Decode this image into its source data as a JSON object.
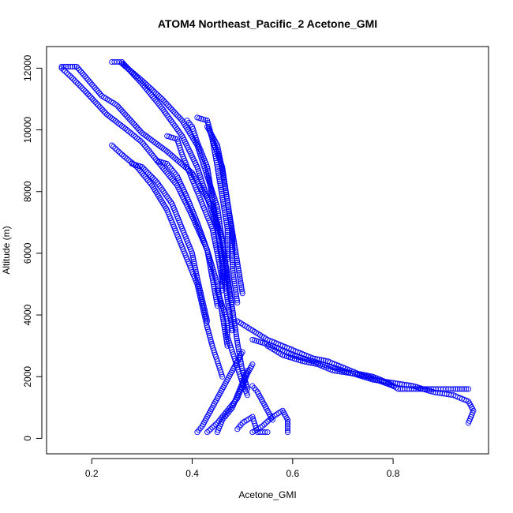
{
  "chart_data": {
    "type": "scatter",
    "title": "ATOM4 Northeast_Pacific_2 Acetone_GMI",
    "xlabel": "Acetone_GMI",
    "ylabel": "Altitude (m)",
    "xlim": [
      0.11,
      0.99
    ],
    "ylim": [
      -500,
      12700
    ],
    "xticks": [
      0.2,
      0.4,
      0.6,
      0.8
    ],
    "xtick_labels": [
      "0.2",
      "0.4",
      "0.6",
      "0.8"
    ],
    "yticks": [
      0,
      2000,
      4000,
      6000,
      8000,
      10000,
      12000
    ],
    "ytick_labels": [
      "0",
      "2000",
      "4000",
      "6000",
      "8000",
      "10000",
      "12000"
    ],
    "grid": false,
    "legend": "none",
    "marker": "open-circle",
    "color": "#0000ff",
    "series": [
      {
        "x": [
          0.14,
          0.17,
          0.22,
          0.25,
          0.3,
          0.35,
          0.4,
          0.44,
          0.46,
          0.47,
          0.48,
          0.49,
          0.5,
          0.51
        ],
        "y": [
          12050,
          12050,
          11100,
          10800,
          9900,
          9300,
          8600,
          7500,
          6400,
          5200,
          4200,
          3100,
          2200,
          1600
        ]
      },
      {
        "x": [
          0.14,
          0.16,
          0.19,
          0.23,
          0.27,
          0.3,
          0.33,
          0.37,
          0.4,
          0.43,
          0.45,
          0.46,
          0.47
        ],
        "y": [
          12000,
          11700,
          11200,
          10500,
          10000,
          9600,
          9000,
          8200,
          7200,
          6100,
          5000,
          4000,
          3000
        ]
      },
      {
        "x": [
          0.24,
          0.26,
          0.3,
          0.34,
          0.38,
          0.41,
          0.43,
          0.45,
          0.46,
          0.47,
          0.48
        ],
        "y": [
          12200,
          12200,
          11500,
          10700,
          9800,
          8800,
          7800,
          6800,
          5600,
          4500,
          3500
        ]
      },
      {
        "x": [
          0.26,
          0.3,
          0.34,
          0.38,
          0.41,
          0.43,
          0.45,
          0.46,
          0.47,
          0.48
        ],
        "y": [
          12150,
          11600,
          11000,
          10300,
          9500,
          8500,
          7500,
          6400,
          5300,
          4200
        ]
      },
      {
        "x": [
          0.24,
          0.26,
          0.29,
          0.32,
          0.35,
          0.37,
          0.39,
          0.41,
          0.42,
          0.43,
          0.44,
          0.45,
          0.46
        ],
        "y": [
          9500,
          9200,
          8800,
          8200,
          7400,
          6600,
          5800,
          5000,
          4300,
          3600,
          3000,
          2500,
          2000
        ]
      },
      {
        "x": [
          0.28,
          0.3,
          0.33,
          0.36,
          0.38,
          0.4,
          0.41,
          0.42,
          0.43
        ],
        "y": [
          8900,
          8800,
          8300,
          7600,
          6800,
          6000,
          5200,
          4500,
          3800
        ]
      },
      {
        "x": [
          0.33,
          0.35,
          0.37,
          0.39,
          0.41,
          0.43,
          0.44,
          0.45
        ],
        "y": [
          9000,
          8900,
          8500,
          7800,
          7000,
          6100,
          5200,
          4300
        ]
      },
      {
        "x": [
          0.35,
          0.37,
          0.38,
          0.4,
          0.42,
          0.44,
          0.45,
          0.46
        ],
        "y": [
          9800,
          9700,
          9200,
          8400,
          7600,
          6800,
          6000,
          5100
        ]
      },
      {
        "x": [
          0.39,
          0.4,
          0.41,
          0.43,
          0.44,
          0.45,
          0.46,
          0.46
        ],
        "y": [
          10300,
          10100,
          9600,
          8800,
          7800,
          6800,
          5800,
          4800
        ]
      },
      {
        "x": [
          0.41,
          0.43,
          0.44,
          0.45,
          0.46,
          0.47,
          0.47
        ],
        "y": [
          10400,
          10300,
          9700,
          8800,
          7800,
          6800,
          5800
        ]
      },
      {
        "x": [
          0.43,
          0.45,
          0.46,
          0.47,
          0.48,
          0.49,
          0.5
        ],
        "y": [
          10100,
          9500,
          8700,
          7700,
          6700,
          5700,
          4700
        ]
      },
      {
        "x": [
          0.44,
          0.46,
          0.47,
          0.48,
          0.48,
          0.49
        ],
        "y": [
          9700,
          8800,
          7700,
          6600,
          5500,
          4400
        ]
      },
      {
        "x": [
          0.45,
          0.46,
          0.47,
          0.47,
          0.48,
          0.49,
          0.5,
          0.51
        ],
        "y": [
          4800,
          4300,
          3800,
          3300,
          2800,
          2300,
          1800,
          1400
        ]
      },
      {
        "x": [
          0.41,
          0.42,
          0.43,
          0.44,
          0.45,
          0.46,
          0.47,
          0.48,
          0.49,
          0.5
        ],
        "y": [
          200,
          400,
          700,
          1000,
          1300,
          1600,
          1900,
          2200,
          2500,
          2800
        ]
      },
      {
        "x": [
          0.43,
          0.45,
          0.47,
          0.49,
          0.5,
          0.51,
          0.52
        ],
        "y": [
          200,
          500,
          900,
          1300,
          1700,
          2100,
          2400
        ]
      },
      {
        "x": [
          0.45,
          0.46,
          0.48,
          0.49,
          0.5,
          0.51
        ],
        "y": [
          200,
          600,
          1000,
          1400,
          1800,
          2200
        ]
      },
      {
        "x": [
          0.52,
          0.54,
          0.56,
          0.58,
          0.59,
          0.59
        ],
        "y": [
          200,
          400,
          700,
          900,
          600,
          200
        ]
      },
      {
        "x": [
          0.49,
          0.5,
          0.52,
          0.53,
          0.54,
          0.55
        ],
        "y": [
          300,
          500,
          700,
          200,
          200,
          200
        ]
      },
      {
        "x": [
          0.52,
          0.53,
          0.54,
          0.55,
          0.56
        ],
        "y": [
          1700,
          1500,
          1200,
          900,
          600
        ]
      },
      {
        "x": [
          0.49,
          0.52,
          0.55,
          0.58,
          0.61,
          0.64,
          0.67,
          0.7,
          0.73,
          0.76,
          0.79,
          0.81,
          0.85,
          0.88,
          0.9,
          0.92,
          0.95
        ],
        "y": [
          3800,
          3500,
          3200,
          3000,
          2800,
          2600,
          2500,
          2300,
          2100,
          2000,
          1800,
          1600,
          1600,
          1600,
          1600,
          1600,
          1600
        ]
      },
      {
        "x": [
          0.52,
          0.56,
          0.6,
          0.64,
          0.68,
          0.72,
          0.76,
          0.8,
          0.84,
          0.88,
          0.92,
          0.95,
          0.96,
          0.95
        ],
        "y": [
          3200,
          3000,
          2700,
          2500,
          2300,
          2100,
          1900,
          1800,
          1700,
          1500,
          1400,
          1200,
          900,
          500
        ]
      },
      {
        "x": [
          0.55,
          0.58,
          0.62,
          0.65,
          0.68,
          0.72,
          0.75,
          0.8
        ],
        "y": [
          3000,
          2700,
          2500,
          2400,
          2200,
          2100,
          2000,
          1700
        ]
      }
    ]
  }
}
